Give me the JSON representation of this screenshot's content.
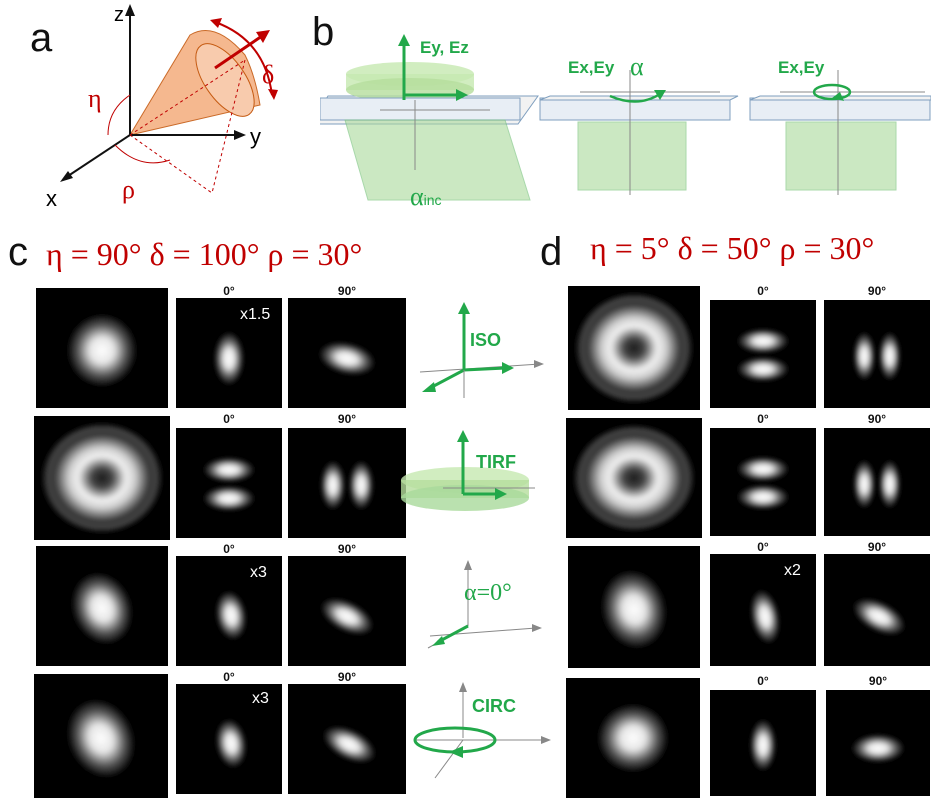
{
  "panel_a": {
    "letter": "a",
    "axes": {
      "z": "z",
      "y": "y",
      "x": "x"
    },
    "angles": {
      "eta": "η",
      "delta": "δ",
      "rho": "ρ"
    }
  },
  "panel_b": {
    "letter": "b",
    "labels": {
      "ey_ez": "Ey, Ez",
      "ex_ey_1": "Ex,Ey",
      "alpha": "α",
      "ex_ey_2": "Ex,Ey",
      "alpha_inc": "α",
      "alpha_inc_sub": "inc"
    }
  },
  "panel_c": {
    "letter": "c",
    "params": "η = 90°  δ = 100°  ρ = 30°"
  },
  "panel_d": {
    "letter": "d",
    "params": "η = 5°  δ = 50°  ρ = 30°"
  },
  "angle_labels": {
    "zero": "0°",
    "ninety": "90°"
  },
  "scales": {
    "c1": "x1.5",
    "c3": "x3",
    "c4": "x3",
    "d3": "x2"
  },
  "modes": [
    {
      "label": "ISO"
    },
    {
      "label": "TIRF"
    },
    {
      "label": "α=0°"
    },
    {
      "label": "CIRC"
    }
  ],
  "colors": {
    "green": "#22a84a",
    "red": "#c00000",
    "cone": "#f4b183"
  }
}
